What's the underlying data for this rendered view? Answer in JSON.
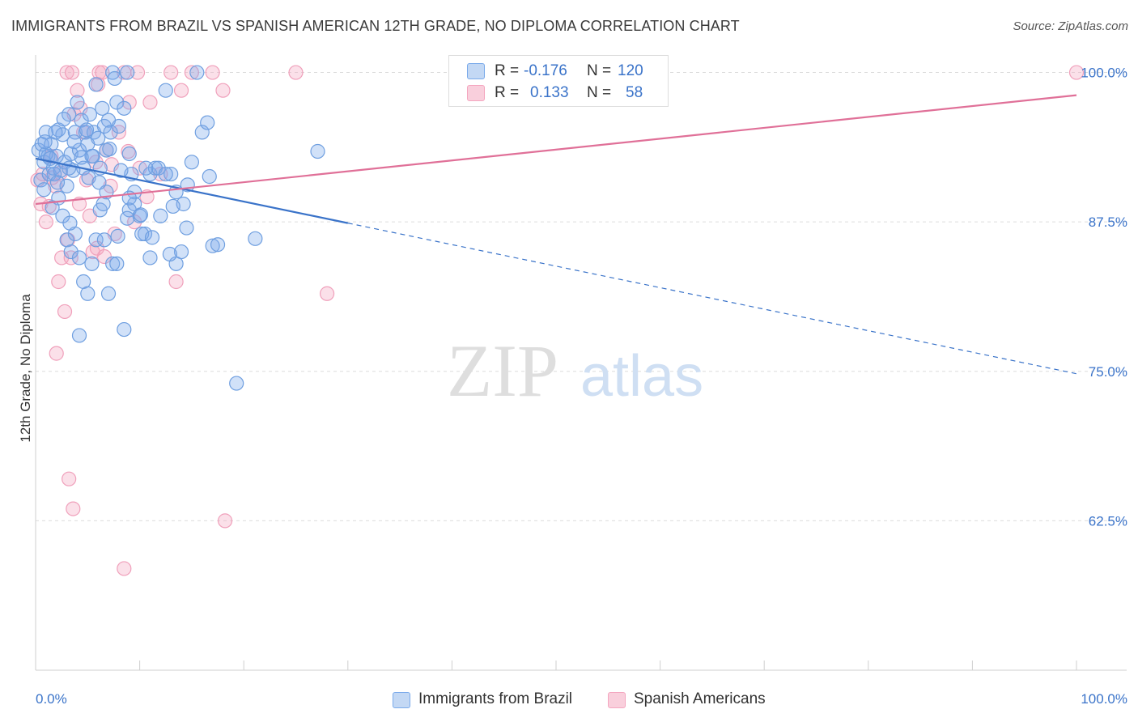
{
  "title": "IMMIGRANTS FROM BRAZIL VS SPANISH AMERICAN 12TH GRADE, NO DIPLOMA CORRELATION CHART",
  "source": "Source: ZipAtlas.com",
  "watermark": {
    "zip": "ZIP",
    "atlas": "atlas"
  },
  "legend": {
    "r_label": "R =",
    "n_label": "N =",
    "rows": [
      {
        "name": "Immigrants from Brazil",
        "r": "-0.176",
        "n": "120",
        "color": "#7aaaea"
      },
      {
        "name": "Spanish Americans",
        "r": "0.133",
        "n": "58",
        "color": "#f4a6bf"
      }
    ]
  },
  "chart_data": {
    "type": "scatter",
    "title": "IMMIGRANTS FROM BRAZIL VS SPANISH AMERICAN 12TH GRADE, NO DIPLOMA CORRELATION CHART",
    "xlabel": "",
    "ylabel": "12th Grade, No Diploma",
    "xlim": [
      0,
      100
    ],
    "ylim": [
      50,
      102
    ],
    "x_tick_labels": [
      "0.0%",
      "100.0%"
    ],
    "y_ticks": [
      62.5,
      75.0,
      87.5,
      100.0
    ],
    "y_tick_labels": [
      "62.5%",
      "75.0%",
      "87.5%",
      "100.0%"
    ],
    "grid": true,
    "series": [
      {
        "name": "Immigrants from Brazil",
        "color": "#7aaaea",
        "line_color": "#3a73c9",
        "trend": {
          "x0": 0,
          "y0": 92.8,
          "x_solid_end": 30,
          "y_solid_end": 87.4,
          "x1": 100,
          "y1": 74.8
        },
        "points": [
          [
            0.3,
            93.5
          ],
          [
            0.5,
            91
          ],
          [
            0.6,
            94
          ],
          [
            0.8,
            92.5
          ],
          [
            1,
            95
          ],
          [
            1.2,
            93
          ],
          [
            1.3,
            91.5
          ],
          [
            1.5,
            94
          ],
          [
            1.7,
            92
          ],
          [
            2,
            93
          ],
          [
            2.2,
            95.2
          ],
          [
            2.4,
            91.8
          ],
          [
            2.6,
            94.8
          ],
          [
            2.8,
            92.5
          ],
          [
            3,
            90.5
          ],
          [
            3.2,
            96.5
          ],
          [
            3.4,
            93.2
          ],
          [
            3.6,
            91.8
          ],
          [
            3.8,
            95
          ],
          [
            4,
            97.5
          ],
          [
            4.2,
            93.5
          ],
          [
            4.4,
            96
          ],
          [
            4.6,
            92
          ],
          [
            4.8,
            95
          ],
          [
            5,
            94
          ],
          [
            5.2,
            96.5
          ],
          [
            5.4,
            93
          ],
          [
            5.6,
            95
          ],
          [
            5.8,
            99
          ],
          [
            6,
            94.5
          ],
          [
            6.2,
            92
          ],
          [
            6.4,
            97
          ],
          [
            6.6,
            95.5
          ],
          [
            6.8,
            93.5
          ],
          [
            7,
            96
          ],
          [
            7.2,
            95
          ],
          [
            7.4,
            100
          ],
          [
            7.6,
            99.5
          ],
          [
            7.8,
            97.5
          ],
          [
            8,
            95.5
          ],
          [
            8.5,
            97
          ],
          [
            8.8,
            100
          ],
          [
            9,
            93.2
          ],
          [
            9.2,
            91.5
          ],
          [
            9.5,
            89
          ],
          [
            10,
            88
          ],
          [
            10.5,
            86.5
          ],
          [
            11,
            91.5
          ],
          [
            11.5,
            92
          ],
          [
            12,
            88
          ],
          [
            12.5,
            98.5
          ],
          [
            13,
            91.5
          ],
          [
            13.5,
            84
          ],
          [
            14,
            85
          ],
          [
            14.2,
            89
          ],
          [
            14.5,
            87
          ],
          [
            15,
            92.5
          ],
          [
            15.5,
            100
          ],
          [
            16,
            95
          ],
          [
            16.5,
            95.8
          ],
          [
            17,
            85.5
          ],
          [
            1,
            93.2
          ],
          [
            1.4,
            92.8
          ],
          [
            1.8,
            91.5
          ],
          [
            2.2,
            89.5
          ],
          [
            2.6,
            88
          ],
          [
            3,
            86
          ],
          [
            3.4,
            85
          ],
          [
            3.8,
            86.5
          ],
          [
            4.2,
            84.5
          ],
          [
            4.6,
            82.5
          ],
          [
            5,
            81.5
          ],
          [
            5.4,
            84
          ],
          [
            5.8,
            86
          ],
          [
            6.2,
            88.5
          ],
          [
            6.6,
            86
          ],
          [
            7,
            81.5
          ],
          [
            7.4,
            84
          ],
          [
            7.8,
            84
          ],
          [
            8.5,
            78.5
          ],
          [
            9,
            88.5
          ],
          [
            9.5,
            90
          ],
          [
            10.2,
            86.5
          ],
          [
            11,
            84.5
          ],
          [
            11.8,
            92
          ],
          [
            12.5,
            91.5
          ],
          [
            13.5,
            90
          ],
          [
            4.2,
            78
          ],
          [
            8.2,
            91.8
          ],
          [
            9,
            89.5
          ],
          [
            3.2,
            92
          ],
          [
            5.5,
            93
          ],
          [
            6.8,
            90
          ],
          [
            2.1,
            90.8
          ],
          [
            4.9,
            95.2
          ],
          [
            7.1,
            93.6
          ],
          [
            10.6,
            92
          ],
          [
            13.2,
            88.8
          ],
          [
            1.9,
            95
          ],
          [
            3.7,
            94.2
          ],
          [
            5.1,
            91.2
          ],
          [
            6.5,
            89
          ],
          [
            8.8,
            87.8
          ],
          [
            11.2,
            86.2
          ],
          [
            12.9,
            84.8
          ],
          [
            14.6,
            90.6
          ],
          [
            0.9,
            94.2
          ],
          [
            2.7,
            96.1
          ],
          [
            4.4,
            92.9
          ],
          [
            6.1,
            90.8
          ],
          [
            7.9,
            86.3
          ],
          [
            10.1,
            88.1
          ],
          [
            16.7,
            91.3
          ],
          [
            17.5,
            85.6
          ],
          [
            21.1,
            86.1
          ],
          [
            27.1,
            93.4
          ],
          [
            19.3,
            74
          ],
          [
            0.8,
            90.2
          ],
          [
            1.6,
            88.7
          ],
          [
            3.3,
            87.4
          ]
        ]
      },
      {
        "name": "Spanish Americans",
        "color": "#f4a6bf",
        "line_color": "#e07098",
        "trend": {
          "x0": 0,
          "y0": 89.0,
          "x1": 100,
          "y1": 98.1
        },
        "points": [
          [
            0.2,
            91
          ],
          [
            0.5,
            89
          ],
          [
            0.7,
            91.5
          ],
          [
            1,
            87.5
          ],
          [
            1.3,
            88.8
          ],
          [
            1.6,
            91.2
          ],
          [
            1.9,
            90.5
          ],
          [
            2.2,
            82.5
          ],
          [
            2.5,
            84.5
          ],
          [
            2.8,
            80
          ],
          [
            3.1,
            86
          ],
          [
            3.4,
            84.5
          ],
          [
            3.7,
            96.5
          ],
          [
            4,
            98.5
          ],
          [
            4.3,
            97
          ],
          [
            4.6,
            95
          ],
          [
            4.9,
            91
          ],
          [
            5.2,
            88
          ],
          [
            5.5,
            85
          ],
          [
            5.8,
            92.5
          ],
          [
            6.1,
            100
          ],
          [
            6.4,
            100
          ],
          [
            6.8,
            93.5
          ],
          [
            7.2,
            90.5
          ],
          [
            7.6,
            86.5
          ],
          [
            8,
            95
          ],
          [
            8.5,
            100
          ],
          [
            9,
            97.5
          ],
          [
            9.5,
            87.5
          ],
          [
            10,
            92
          ],
          [
            3,
            100
          ],
          [
            3.5,
            100
          ],
          [
            6,
            99
          ],
          [
            9.8,
            100
          ],
          [
            11,
            97.5
          ],
          [
            12,
            91.5
          ],
          [
            13,
            100
          ],
          [
            14,
            98.5
          ],
          [
            15,
            100
          ],
          [
            17,
            100
          ],
          [
            18,
            98.5
          ],
          [
            2,
            76.5
          ],
          [
            3.2,
            66
          ],
          [
            3.6,
            63.5
          ],
          [
            8.5,
            58.5
          ],
          [
            18.2,
            62.5
          ],
          [
            13.5,
            82.5
          ],
          [
            28,
            81.5
          ],
          [
            25,
            100
          ],
          [
            100,
            100
          ],
          [
            1.5,
            93
          ],
          [
            2.4,
            91.6
          ],
          [
            4.2,
            89
          ],
          [
            5.9,
            85.3
          ],
          [
            7.3,
            92.3
          ],
          [
            8.9,
            93.4
          ],
          [
            10.7,
            89.6
          ],
          [
            6.6,
            84.6
          ]
        ]
      }
    ]
  }
}
